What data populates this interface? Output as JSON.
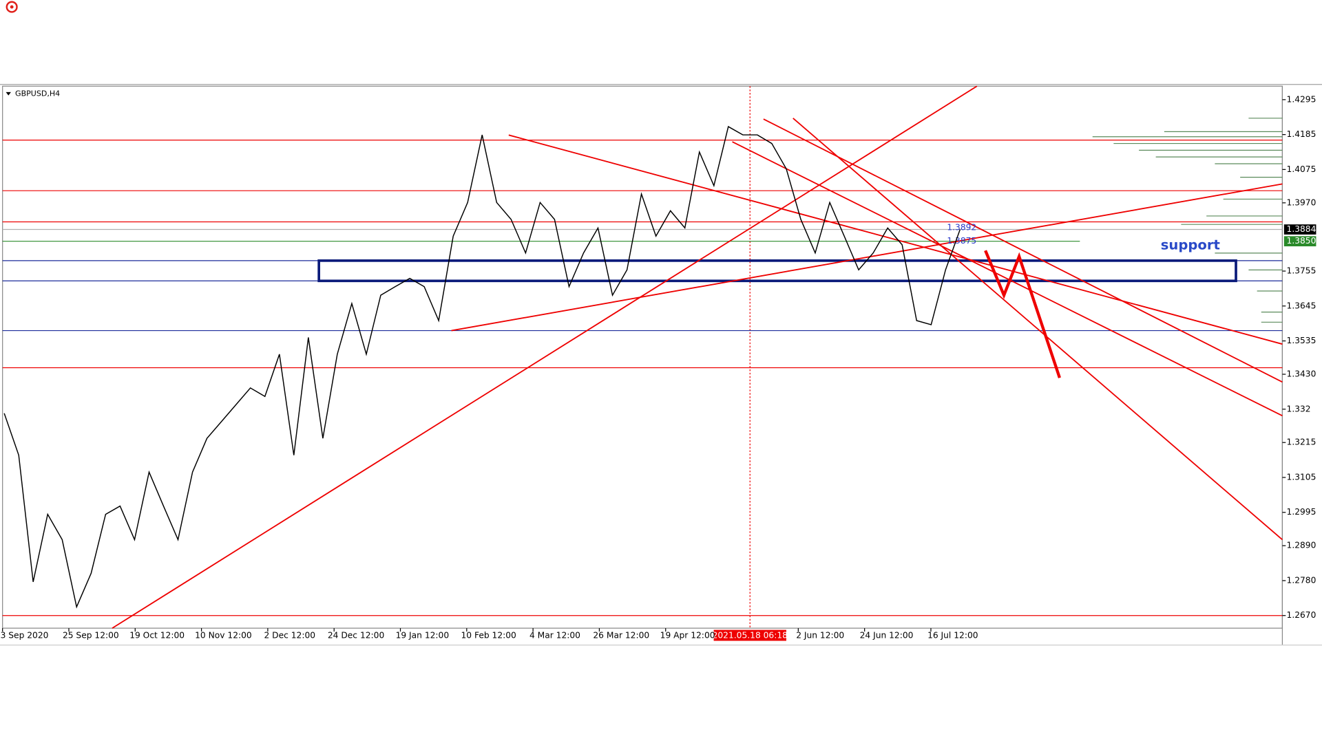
{
  "window": {
    "symbol": "GBPUSD,H4"
  },
  "chart": {
    "price_axis": {
      "ticks": [
        1.4295,
        1.4185,
        1.4075,
        {
          "value": 1.397,
          "label": "1.3970"
        },
        1.3755,
        1.3645,
        1.3535,
        {
          "value": 1.343,
          "label": "1.3430"
        },
        1.332,
        1.3215,
        1.3105,
        1.2995,
        {
          "value": 1.289,
          "label": "1.2890"
        },
        {
          "value": 1.278,
          "label": "1.2780"
        },
        {
          "value": 1.267,
          "label": "1.2670"
        }
      ]
    },
    "time_axis": {
      "labels": [
        "3 Sep 2020",
        "25 Sep 12:00",
        "19 Oct 12:00",
        "10 Nov 12:00",
        "2 Dec 12:00",
        "24 Dec 12:00",
        "19 Jan 12:00",
        "10 Feb 12:00",
        "4 Mar 12:00",
        "26 Mar 12:00",
        "19 Apr 12:00",
        null,
        "2 Jun 12:00",
        "24 Jun 12:00",
        "16 Jul 12:00"
      ]
    },
    "crosshair_time": "2021.05.18 06:18",
    "bid_tag": "1.3884",
    "level_tag": "1.3850",
    "line_labels": [
      "1.3892",
      "1.3875"
    ],
    "annotation": "support",
    "price_path": [
      1.3307,
      1.3175,
      1.2776,
      1.2989,
      1.2909,
      1.2697,
      1.2803,
      1.2989,
      1.3015,
      1.2909,
      1.3122,
      1.3015,
      1.2909,
      1.3122,
      1.3228,
      1.3281,
      1.3334,
      1.3387,
      1.336,
      1.3493,
      1.3175,
      1.3546,
      1.3228,
      1.3493,
      1.3653,
      1.3493,
      1.3679,
      1.3706,
      1.3732,
      1.3706,
      1.3599,
      1.3865,
      1.3971,
      1.4184,
      1.3971,
      1.3918,
      1.3812,
      1.3971,
      1.3918,
      1.3706,
      1.3812,
      1.3891,
      1.3679,
      1.3759,
      1.3998,
      1.3865,
      1.3945,
      1.3891,
      1.413,
      1.4024,
      1.421,
      1.4184,
      1.4184,
      1.4157,
      1.4077,
      1.3918,
      1.3812,
      1.3971,
      1.3865,
      1.3759,
      1.3812,
      1.3891,
      1.3838,
      1.3599,
      1.3586,
      1.3759,
      1.3886
    ]
  }
}
